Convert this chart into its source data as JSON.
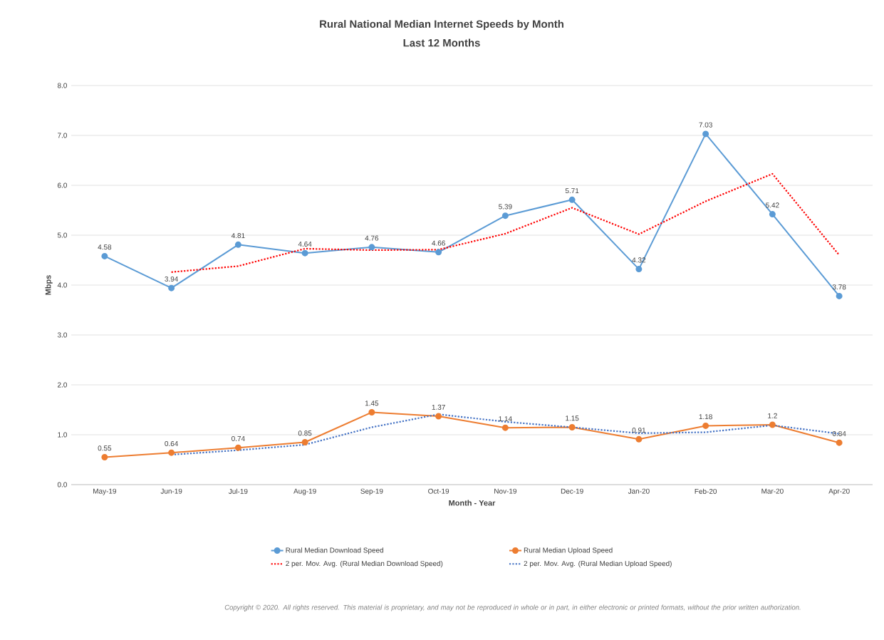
{
  "chart_data": {
    "type": "line",
    "title": "Rural National Median Internet Speeds by Month",
    "subtitle": "Last 12 Months",
    "xlabel": "Month - Year",
    "ylabel": "Mbps",
    "categories": [
      "May-19",
      "Jun-19",
      "Jul-19",
      "Aug-19",
      "Sep-19",
      "Oct-19",
      "Nov-19",
      "Dec-19",
      "Jan-20",
      "Feb-20",
      "Mar-20",
      "Apr-20"
    ],
    "ylim": [
      0,
      8
    ],
    "yticks": [
      {
        "value": 0,
        "label": "0.0"
      },
      {
        "value": 1,
        "label": "1.0"
      },
      {
        "value": 2,
        "label": "2.0"
      },
      {
        "value": 3,
        "label": "3.0"
      },
      {
        "value": 4,
        "label": "4.0"
      },
      {
        "value": 5,
        "label": "5.0"
      },
      {
        "value": 6,
        "label": "6.0"
      },
      {
        "value": 7,
        "label": "7.0"
      },
      {
        "value": 8,
        "label": "8.0"
      }
    ],
    "grid": "y",
    "legend": "bottom",
    "series": [
      {
        "name": "Rural Median Download Speed",
        "color": "#5b9bd5",
        "marker": "circle",
        "line_style": "solid",
        "values": [
          4.58,
          3.94,
          4.81,
          4.64,
          4.76,
          4.66,
          5.39,
          5.71,
          4.32,
          7.03,
          5.42,
          3.78
        ],
        "value_labels": [
          "4.58",
          "3.94",
          "4.81",
          "4.64",
          "4.76",
          "4.66",
          "5.39",
          "5.71",
          "4.32",
          "7.03",
          "5.42",
          "3.78"
        ]
      },
      {
        "name": "Rural Median Upload Speed",
        "color": "#ed7d31",
        "marker": "circle",
        "line_style": "solid",
        "values": [
          0.55,
          0.64,
          0.74,
          0.85,
          1.45,
          1.37,
          1.14,
          1.15,
          0.91,
          1.18,
          1.2,
          0.84
        ],
        "value_labels": [
          "0.55",
          "0.64",
          "0.74",
          "0.85",
          "1.45",
          "1.37",
          "1.14",
          "1.15",
          "0.91",
          "1.18",
          "1.2",
          "0.84"
        ]
      },
      {
        "name": "2 per. Mov. Avg. (Rural Median Download Speed)",
        "color": "#ff0000",
        "marker": "none",
        "line_style": "dotted",
        "values": [
          null,
          4.26,
          4.38,
          4.73,
          4.7,
          4.71,
          5.03,
          5.55,
          5.02,
          5.68,
          6.23,
          4.6
        ]
      },
      {
        "name": "2 per. Mov. Avg. (Rural Median Upload Speed)",
        "color": "#4472c4",
        "marker": "none",
        "line_style": "dotted",
        "values": [
          null,
          0.6,
          0.69,
          0.8,
          1.15,
          1.41,
          1.26,
          1.15,
          1.03,
          1.05,
          1.19,
          1.02
        ]
      }
    ],
    "annotations": [
      "Copyright © 2020. All rights reserved. This material is proprietary, and may not be reproduced in whole or in part, in either electronic or printed formats, without the prior written authorization."
    ]
  }
}
